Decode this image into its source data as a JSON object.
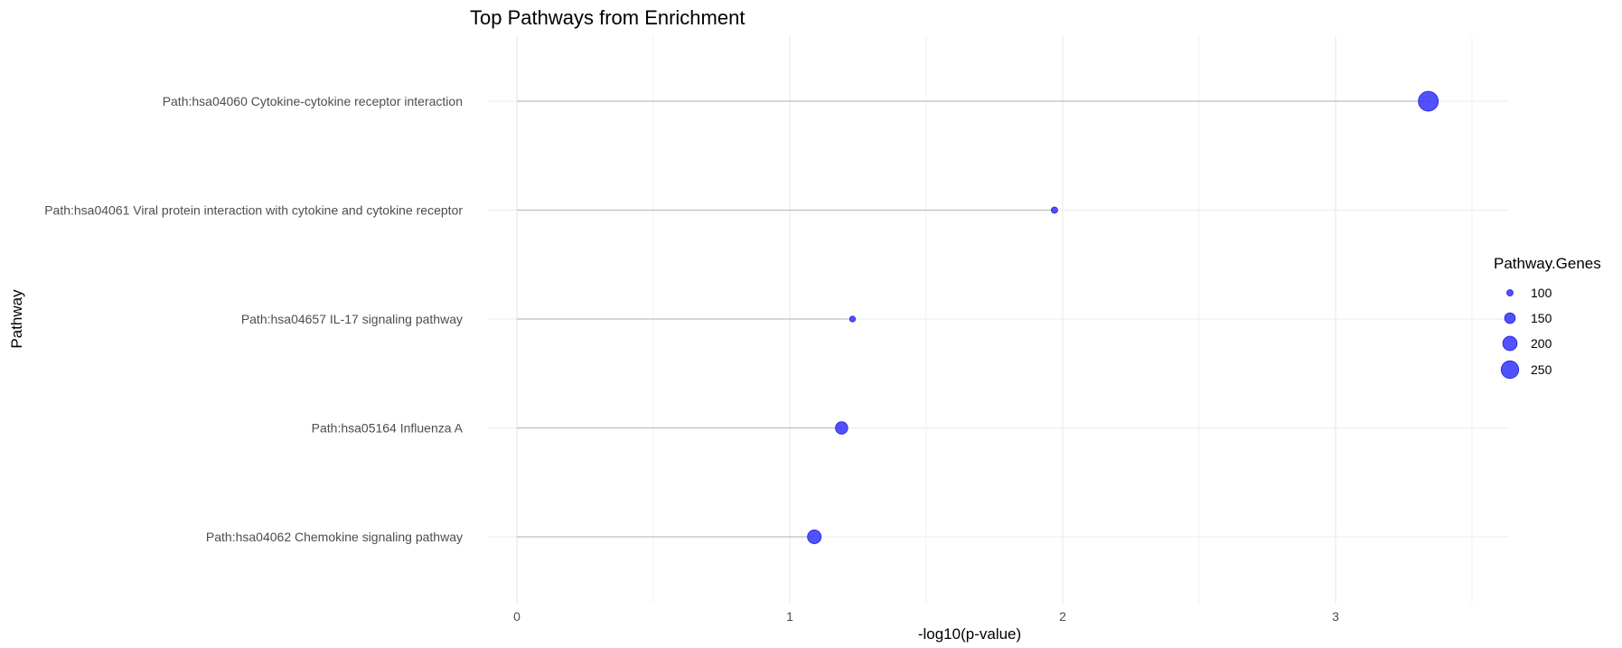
{
  "chart_data": {
    "type": "scatter",
    "title": "Top Pathways from Enrichment",
    "xlabel": "-log10(p-value)",
    "ylabel": "Pathway",
    "xlim": [
      0,
      3.5
    ],
    "x_ticks": [
      "0",
      "1",
      "2",
      "3"
    ],
    "grid": true,
    "legend_position": "right",
    "point_color": "#3333ff",
    "segment_color": "#bfbfbf",
    "pathways": [
      {
        "label": "Path:hsa04060 Cytokine-cytokine receptor interaction",
        "value": 3.34,
        "genes": 290
      },
      {
        "label": "Path:hsa04061 Viral protein interaction with cytokine and cytokine receptor",
        "value": 1.97,
        "genes": 100
      },
      {
        "label": "Path:hsa04657 IL-17 signaling pathway",
        "value": 1.23,
        "genes": 94
      },
      {
        "label": "Path:hsa05164 Influenza A",
        "value": 1.19,
        "genes": 171
      },
      {
        "label": "Path:hsa04062 Chemokine signaling pathway",
        "value": 1.09,
        "genes": 190
      }
    ],
    "legend": {
      "title": "Pathway.Genes",
      "entries": [
        {
          "label": "100",
          "genes": 100
        },
        {
          "label": "150",
          "genes": 150
        },
        {
          "label": "200",
          "genes": 200
        },
        {
          "label": "250",
          "genes": 250
        }
      ]
    }
  }
}
